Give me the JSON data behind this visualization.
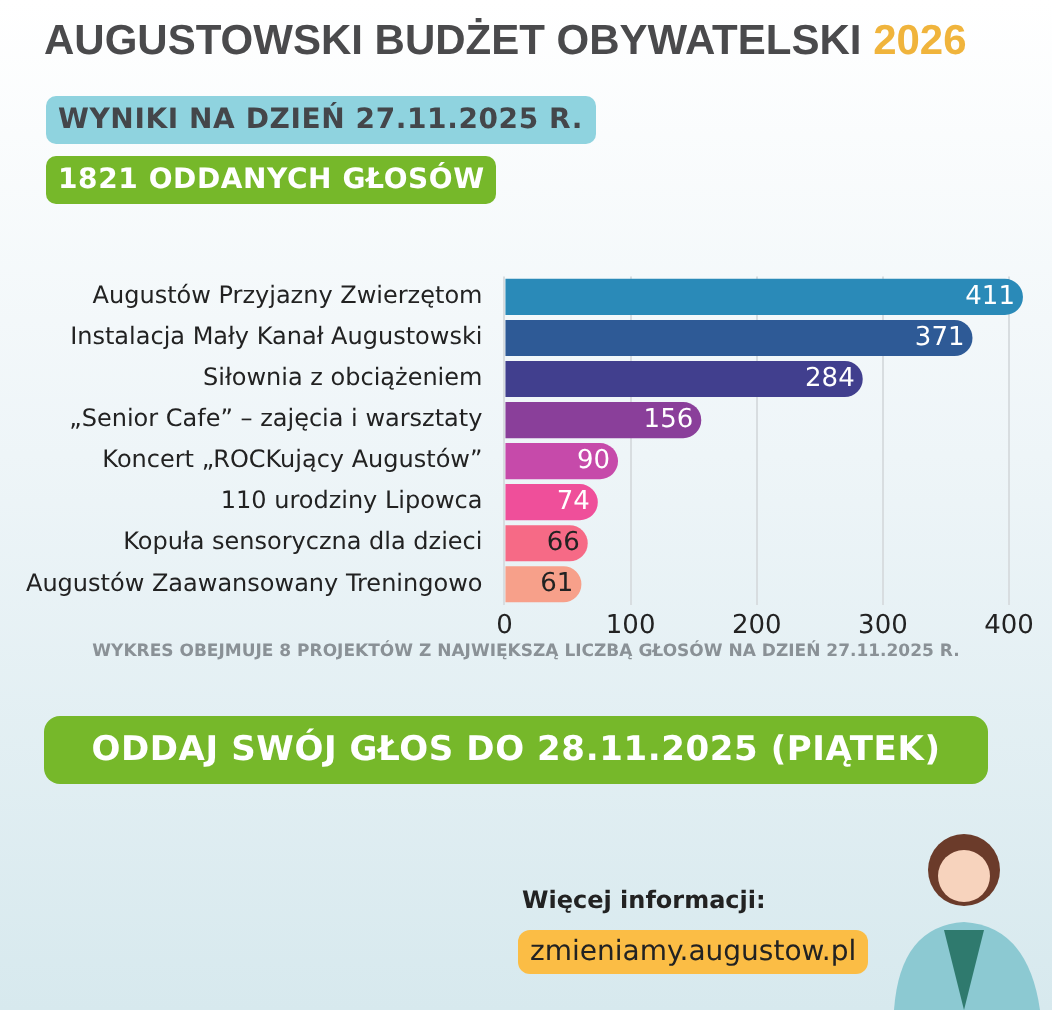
{
  "chart_data": {
    "type": "bar",
    "orientation": "horizontal",
    "title": "AUGUSTOWSKI BUDŻET OBYWATELSKI 2026",
    "subtitle": "WYNIKI NA DZIEŃ 27.11.2025 R.",
    "categories": [
      "Augustów Przyjazny Zwierzętom",
      "Instalacja Mały Kanał Augustowski",
      "Siłownia z obciążeniem",
      "„Senior Cafe” – zajęcia i warsztaty",
      "Koncert „ROCKujący Augustów”",
      "110 urodziny Lipowca",
      "Kopuła sensoryczna dla dzieci",
      "Augustów Zaawansowany Treningowo"
    ],
    "values": [
      411,
      371,
      284,
      156,
      90,
      74,
      66,
      61
    ],
    "colors": [
      "#2a8ab8",
      "#2e5a96",
      "#413f8e",
      "#8a3f9a",
      "#c64aaa",
      "#ef4f9a",
      "#f66a86",
      "#f7a08a"
    ],
    "xlim": [
      0,
      415
    ],
    "xticks": [
      0,
      100,
      200,
      300,
      400
    ],
    "grid": "x",
    "legend": false,
    "data_labels": true,
    "annotations": [
      "1821 ODDANYCH GŁOSÓW",
      "WYKRES OBEJMUJE 8 PROJEKTÓW Z NAJWIĘKSZĄ LICZBĄ GŁOSÓW NA DZIEŃ 27.11.2025 R.",
      "ODDAJ SWÓJ GŁOS DO 28.11.2025 (PIĄTEK)",
      "Więcej informacji:",
      "zmieniamy.augustow.pl"
    ]
  }
}
